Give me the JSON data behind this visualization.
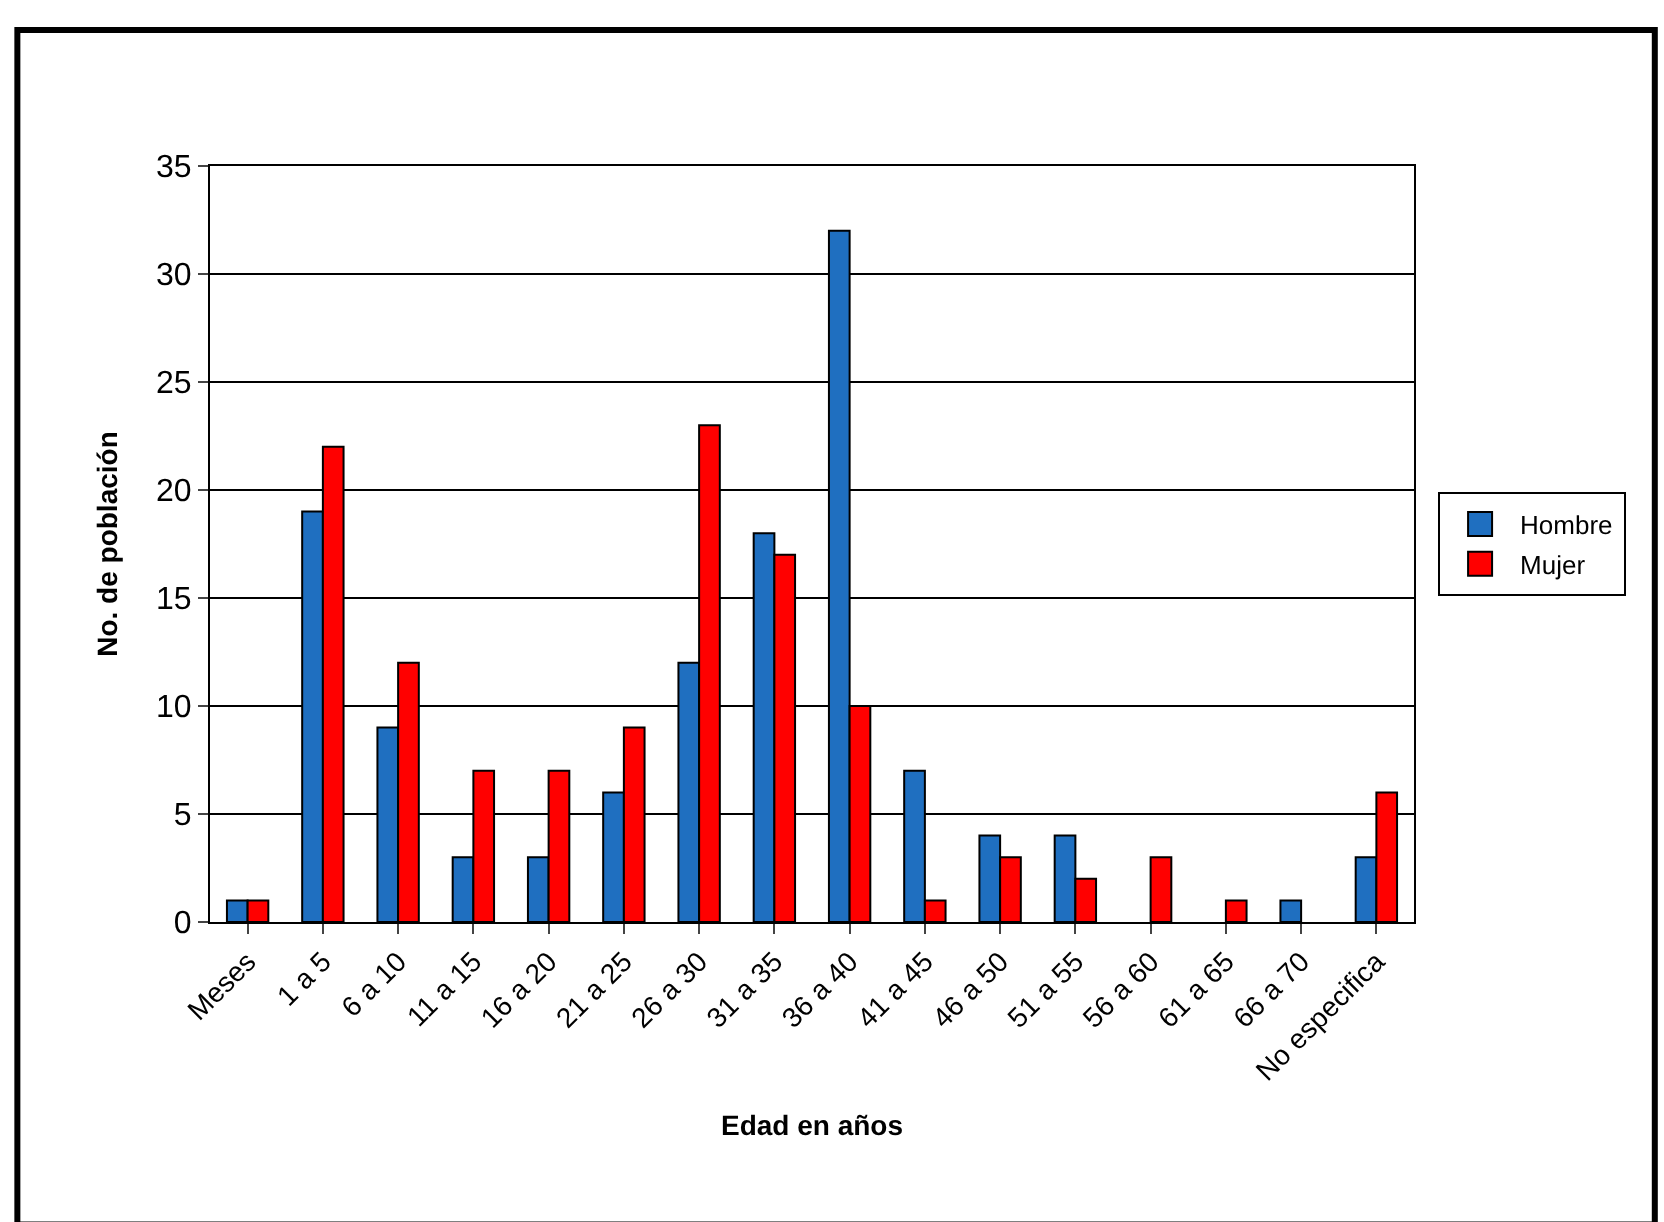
{
  "chart_data": {
    "type": "bar",
    "xlabel": "Edad en años",
    "ylabel": "No. de población",
    "categories": [
      "Meses",
      "1 a 5",
      "6 a 10",
      "11 a 15",
      "16 a 20",
      "21 a 25",
      "26 a 30",
      "31 a 35",
      "36 a 40",
      "41 a 45",
      "46 a 50",
      "51 a 55",
      "56 a 60",
      "61 a 65",
      "66 a 70",
      "No especifica"
    ],
    "series": [
      {
        "name": "Hombre",
        "color": "#1f6fc0",
        "values": [
          1,
          19,
          9,
          3,
          3,
          6,
          12,
          18,
          32,
          7,
          4,
          4,
          null,
          null,
          1,
          3
        ]
      },
      {
        "name": "Mujer",
        "color": "#ff0000",
        "values": [
          1,
          22,
          12,
          7,
          7,
          9,
          23,
          17,
          10,
          1,
          3,
          2,
          3,
          1,
          null,
          6
        ]
      }
    ],
    "ylim": [
      0,
      35
    ],
    "yticks": [
      0,
      5,
      10,
      15,
      20,
      25,
      30,
      35
    ],
    "grid": "y",
    "legend": "right"
  }
}
